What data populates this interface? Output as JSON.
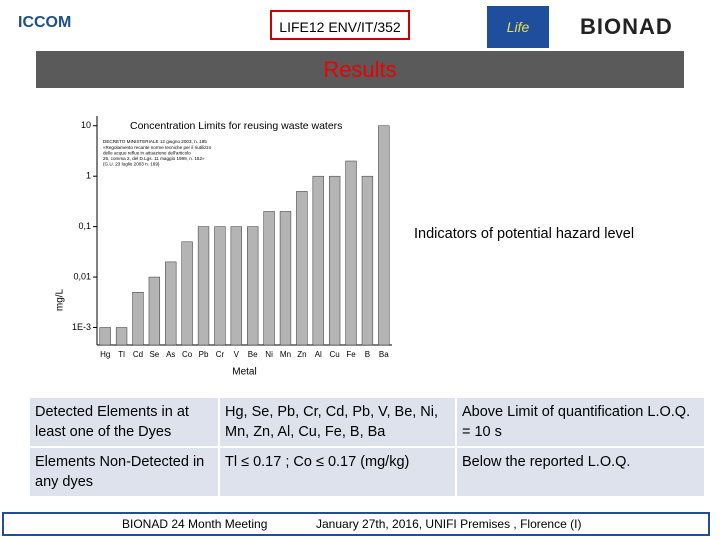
{
  "header": {
    "logo_left": "ICCOM",
    "project": "LIFE12 ENV/IT/352",
    "logo_eu": "Life",
    "logo_right": "BIONAD",
    "section": "Results"
  },
  "chart_data": {
    "type": "bar",
    "title": "Concentration Limits for reusing waste waters",
    "note": [
      "DECRETO MINISTERIALE 12 giugno 2003, n. 185",
      "«Regolamento recante norme tecniche per il riutilizzo",
      "delle acque reflue in attuazione dell'articolo",
      "26, comma 2, del D.Lgs. 11 maggio 1999, n. 152»",
      "(G.U. 23 luglio 2003 n. 169)"
    ],
    "annotation": "Indicators of potential hazard level",
    "x_label": "Metal",
    "y_label": "mg/L",
    "categories": [
      "Hg",
      "Tl",
      "Cd",
      "Se",
      "As",
      "Co",
      "Pb",
      "Cr",
      "V",
      "Be",
      "Ni",
      "Mn",
      "Zn",
      "Al",
      "Cu",
      "Fe",
      "B",
      "Ba"
    ],
    "values": [
      0.001,
      0.001,
      0.005,
      0.01,
      0.02,
      0.05,
      0.1,
      0.1,
      0.1,
      0.1,
      0.2,
      0.2,
      0.5,
      1,
      1,
      2,
      1,
      10
    ],
    "color": "#b4b4b4",
    "log_y": true,
    "ylim": [
      0.00045,
      13
    ],
    "yticks": [
      {
        "value": 0.001,
        "label": "1E-3"
      },
      {
        "value": 0.01,
        "label": "0,01"
      },
      {
        "value": 0.1,
        "label": "0,1"
      },
      1,
      10
    ]
  },
  "table": {
    "rows": [
      [
        "Detected Elements in at least one of the Dyes",
        "Hg, Se, Pb, Cr, Cd, Pb, V, Be, Ni, Mn, Zn, Al, Cu, Fe, B, Ba",
        "Above  Limit of quantification L.O.Q. = 10 s"
      ],
      [
        "Elements Non-Detected in any dyes",
        "Tl ≤ 0.17 ; Co ≤ 0.17 (mg/kg)",
        "Below the reported L.O.Q."
      ]
    ]
  },
  "footer": {
    "left": "BIONAD   24 Month Meeting",
    "right": "January 27th, 2016, UNIFI  Premises , Florence (I)"
  }
}
